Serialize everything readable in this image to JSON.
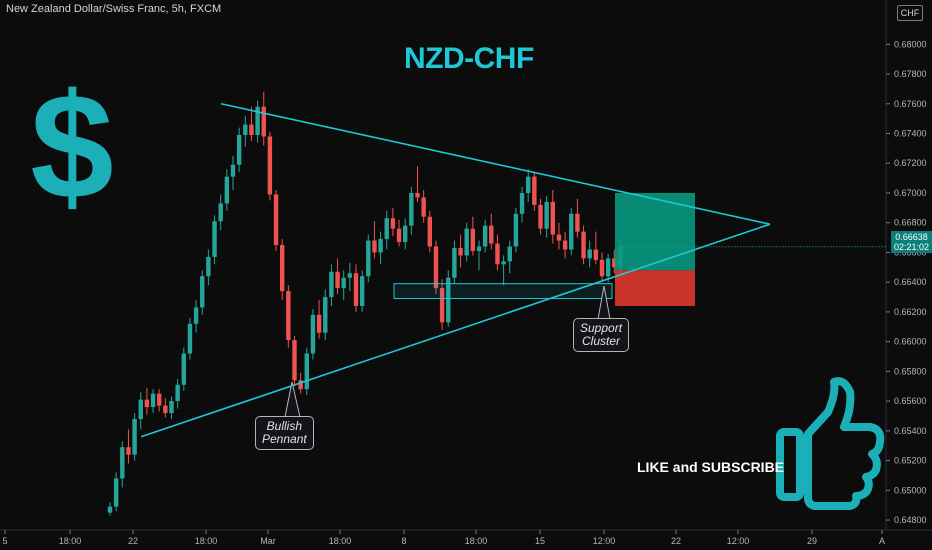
{
  "header": {
    "symbol_title": "New Zealand Dollar/Swiss Franc, 5h, FXCM",
    "currency_label": "CHF"
  },
  "overlay": {
    "pair_title": "NZD-CHF",
    "dollar_icon_color": "#1bb0b8",
    "thumb_icon_color": "#1bb0b8",
    "call_to_action": "LIKE and SUBSCRIBE"
  },
  "annotations": {
    "bullish_pennant": [
      "Bullish",
      "Pennant"
    ],
    "support_cluster": [
      "Support",
      "Cluster"
    ]
  },
  "last_price": {
    "value": "0.66638",
    "countdown": "02:21:02",
    "color": "#0b7f78"
  },
  "colors": {
    "bull": "#26a69a",
    "bear": "#ef5350",
    "pattern_line": "#1ec8d6",
    "target_zone": "#089981",
    "stop_zone": "#e0392e"
  },
  "chart_data": {
    "type": "candlestick",
    "title": "NZD-CHF",
    "timeframe": "5h",
    "source": "FXCM",
    "x_tick_labels": [
      "5",
      "18:00",
      "22",
      "18:00",
      "Mar",
      "18:00",
      "8",
      "18:00",
      "15",
      "12:00",
      "22",
      "12:00",
      "29",
      "A"
    ],
    "y_ticks": [
      "0.68000",
      "0.67800",
      "0.67600",
      "0.67400",
      "0.67200",
      "0.67000",
      "0.66800",
      "0.66600",
      "0.66400",
      "0.66200",
      "0.66000",
      "0.65800",
      "0.65600",
      "0.65400",
      "0.65200",
      "0.65000",
      "0.64800"
    ],
    "ylim": [
      0.6476,
      0.6815
    ],
    "candles_ohlc": [
      [
        0.6485,
        0.6492,
        0.6483,
        0.6489
      ],
      [
        0.6489,
        0.6512,
        0.6486,
        0.6508
      ],
      [
        0.6508,
        0.6533,
        0.6502,
        0.6529
      ],
      [
        0.6529,
        0.6541,
        0.6518,
        0.6524
      ],
      [
        0.6524,
        0.6552,
        0.652,
        0.6548
      ],
      [
        0.6548,
        0.6566,
        0.6541,
        0.6561
      ],
      [
        0.6561,
        0.6569,
        0.6551,
        0.6556
      ],
      [
        0.6556,
        0.6568,
        0.6552,
        0.6565
      ],
      [
        0.6565,
        0.6568,
        0.6553,
        0.6557
      ],
      [
        0.6557,
        0.6562,
        0.6549,
        0.6552
      ],
      [
        0.6552,
        0.6563,
        0.6548,
        0.656
      ],
      [
        0.656,
        0.6575,
        0.6555,
        0.6571
      ],
      [
        0.6571,
        0.6596,
        0.6567,
        0.6592
      ],
      [
        0.6592,
        0.6616,
        0.6588,
        0.6612
      ],
      [
        0.6612,
        0.6628,
        0.6606,
        0.6623
      ],
      [
        0.6623,
        0.6648,
        0.6618,
        0.6644
      ],
      [
        0.6644,
        0.6662,
        0.6638,
        0.6657
      ],
      [
        0.6657,
        0.6685,
        0.6652,
        0.6681
      ],
      [
        0.6681,
        0.6699,
        0.6675,
        0.6693
      ],
      [
        0.6693,
        0.6716,
        0.6688,
        0.6711
      ],
      [
        0.6711,
        0.6725,
        0.6702,
        0.6719
      ],
      [
        0.6719,
        0.6744,
        0.6714,
        0.6739
      ],
      [
        0.6739,
        0.6752,
        0.6731,
        0.6746
      ],
      [
        0.6746,
        0.6758,
        0.6735,
        0.6739
      ],
      [
        0.6739,
        0.6762,
        0.6734,
        0.6758
      ],
      [
        0.6758,
        0.6768,
        0.6732,
        0.6738
      ],
      [
        0.6738,
        0.6741,
        0.6695,
        0.6699
      ],
      [
        0.6699,
        0.6702,
        0.6661,
        0.6665
      ],
      [
        0.6665,
        0.6669,
        0.6628,
        0.6634
      ],
      [
        0.6634,
        0.6638,
        0.6596,
        0.6601
      ],
      [
        0.6601,
        0.6604,
        0.657,
        0.6574
      ],
      [
        0.6574,
        0.6579,
        0.6565,
        0.6568
      ],
      [
        0.6568,
        0.6596,
        0.6564,
        0.6592
      ],
      [
        0.6592,
        0.6622,
        0.6588,
        0.6618
      ],
      [
        0.6618,
        0.6628,
        0.6602,
        0.6606
      ],
      [
        0.6606,
        0.6635,
        0.6601,
        0.663
      ],
      [
        0.663,
        0.6652,
        0.6624,
        0.6647
      ],
      [
        0.6647,
        0.6656,
        0.6632,
        0.6636
      ],
      [
        0.6636,
        0.6648,
        0.6628,
        0.6643
      ],
      [
        0.6643,
        0.6653,
        0.6634,
        0.6646
      ],
      [
        0.6646,
        0.6652,
        0.662,
        0.6624
      ],
      [
        0.6624,
        0.6648,
        0.662,
        0.6644
      ],
      [
        0.6644,
        0.6672,
        0.664,
        0.6668
      ],
      [
        0.6668,
        0.6681,
        0.6656,
        0.666
      ],
      [
        0.666,
        0.6674,
        0.6652,
        0.6669
      ],
      [
        0.6669,
        0.6688,
        0.6662,
        0.6683
      ],
      [
        0.6683,
        0.669,
        0.6671,
        0.6676
      ],
      [
        0.6676,
        0.6682,
        0.6664,
        0.6667
      ],
      [
        0.6667,
        0.6683,
        0.6662,
        0.6678
      ],
      [
        0.6678,
        0.6704,
        0.6672,
        0.67
      ],
      [
        0.67,
        0.6718,
        0.6694,
        0.6697
      ],
      [
        0.6697,
        0.6702,
        0.668,
        0.6684
      ],
      [
        0.6684,
        0.6688,
        0.666,
        0.6664
      ],
      [
        0.6664,
        0.6668,
        0.6632,
        0.6636
      ],
      [
        0.6636,
        0.6642,
        0.6608,
        0.6613
      ],
      [
        0.6613,
        0.6648,
        0.661,
        0.6643
      ],
      [
        0.6643,
        0.6668,
        0.6639,
        0.6663
      ],
      [
        0.6663,
        0.6672,
        0.665,
        0.6658
      ],
      [
        0.6658,
        0.668,
        0.6654,
        0.6676
      ],
      [
        0.6676,
        0.6684,
        0.6658,
        0.6661
      ],
      [
        0.6661,
        0.6668,
        0.6648,
        0.6664
      ],
      [
        0.6664,
        0.6682,
        0.666,
        0.6678
      ],
      [
        0.6678,
        0.6686,
        0.6662,
        0.6666
      ],
      [
        0.6666,
        0.6672,
        0.6648,
        0.6652
      ],
      [
        0.6652,
        0.6658,
        0.6638,
        0.6654
      ],
      [
        0.6654,
        0.6668,
        0.6646,
        0.6664
      ],
      [
        0.6664,
        0.669,
        0.666,
        0.6686
      ],
      [
        0.6686,
        0.6704,
        0.668,
        0.67
      ],
      [
        0.67,
        0.6716,
        0.6694,
        0.6711
      ],
      [
        0.6711,
        0.6714,
        0.6688,
        0.6692
      ],
      [
        0.6692,
        0.6696,
        0.6672,
        0.6676
      ],
      [
        0.6676,
        0.6698,
        0.667,
        0.6694
      ],
      [
        0.6694,
        0.6702,
        0.6666,
        0.6672
      ],
      [
        0.6672,
        0.668,
        0.6662,
        0.6668
      ],
      [
        0.6668,
        0.6674,
        0.6656,
        0.6662
      ],
      [
        0.6662,
        0.669,
        0.6658,
        0.6686
      ],
      [
        0.6686,
        0.6696,
        0.667,
        0.6674
      ],
      [
        0.6674,
        0.6678,
        0.6652,
        0.6656
      ],
      [
        0.6656,
        0.6668,
        0.665,
        0.6662
      ],
      [
        0.6662,
        0.6674,
        0.6652,
        0.6655
      ],
      [
        0.6655,
        0.666,
        0.664,
        0.6644
      ],
      [
        0.6644,
        0.6659,
        0.664,
        0.6656
      ],
      [
        0.6656,
        0.6662,
        0.6646,
        0.665
      ],
      [
        0.665,
        0.6668,
        0.6646,
        0.6664
      ]
    ],
    "pattern": {
      "name": "Bullish Pennant",
      "upper_trendline": {
        "from": 0.676,
        "to": 0.6679
      },
      "lower_trendline": {
        "from": 0.6536,
        "to": 0.6679
      },
      "support_zone": [
        0.6629,
        0.6639
      ],
      "target_zone": [
        0.6648,
        0.67
      ],
      "stop_zone": [
        0.6624,
        0.6648
      ]
    },
    "last_value": 0.66638,
    "grid": false,
    "legend": "none"
  }
}
